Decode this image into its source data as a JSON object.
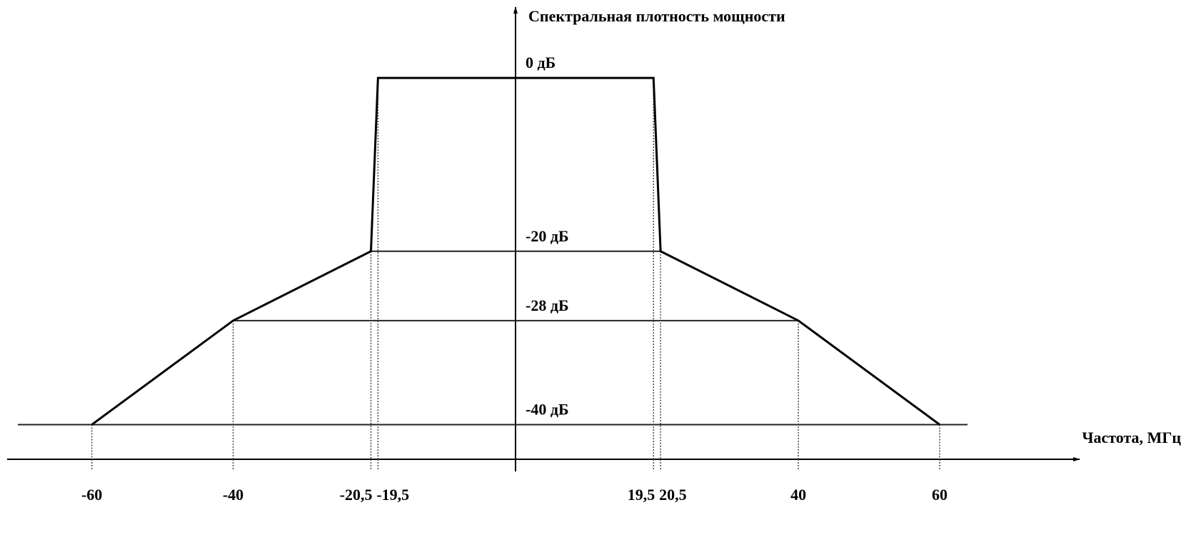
{
  "chart_data": {
    "type": "line",
    "y_label": "Спектральная плотность мощности",
    "x_label": "Частота, МГц",
    "x": [
      -60,
      -40,
      -20.5,
      -19.5,
      19.5,
      20.5,
      40,
      60
    ],
    "series": [
      {
        "color": "#000000",
        "values": [
          -40,
          -28,
          -20,
          0,
          0,
          -20,
          -28,
          -40
        ]
      }
    ],
    "xlim": [
      -73,
      79
    ],
    "ylim": [
      -44,
      8
    ],
    "xticks": [
      -60,
      -40,
      {
        "value": -20.5,
        "label": "-20,5"
      },
      {
        "value": -19.5,
        "label": "-19,5"
      },
      {
        "value": 19.5,
        "label": "19,5"
      },
      {
        "value": 20.5,
        "label": "20,5"
      },
      40,
      60
    ],
    "yticks": [
      {
        "value": 0,
        "label": "0 дБ"
      },
      {
        "value": -20,
        "label": "-20 дБ"
      },
      {
        "value": -28,
        "label": "-28 дБ"
      },
      {
        "value": -40,
        "label": "-40 дБ"
      }
    ],
    "grid": true
  }
}
